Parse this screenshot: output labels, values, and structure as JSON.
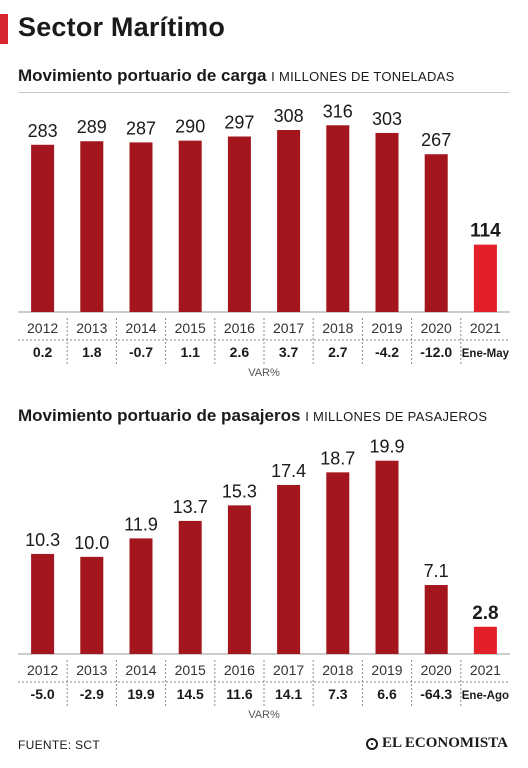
{
  "title": "Sector Marítimo",
  "colors": {
    "bar": "#a3161d",
    "highlight": "#e3202a",
    "accent": "#d8262e"
  },
  "footer": {
    "source": "FUENTE: SCT",
    "logo": "EL ECONOMISTA"
  },
  "chart_data": [
    {
      "type": "bar",
      "title": "Movimiento portuario de carga",
      "unit": "I MILLONES DE TONELADAS",
      "categories": [
        "2012",
        "2013",
        "2014",
        "2015",
        "2016",
        "2017",
        "2018",
        "2019",
        "2020",
        "2021"
      ],
      "values": [
        283,
        289,
        287,
        290,
        297,
        308,
        316,
        303,
        267,
        114
      ],
      "value_labels": [
        "283",
        "289",
        "287",
        "290",
        "297",
        "308",
        "316",
        "303",
        "267",
        "114"
      ],
      "variation": [
        "0.2",
        "1.8",
        "-0.7",
        "1.1",
        "2.6",
        "3.7",
        "2.7",
        "-4.2",
        "-12.0",
        "Ene-May"
      ],
      "variation_label": "VAR%",
      "highlight_index": 9,
      "ylim": [
        0,
        330
      ]
    },
    {
      "type": "bar",
      "title": "Movimiento portuario de pasajeros",
      "unit": "I MILLONES DE PASAJEROS",
      "categories": [
        "2012",
        "2013",
        "2014",
        "2015",
        "2016",
        "2017",
        "2018",
        "2019",
        "2020",
        "2021"
      ],
      "values": [
        10.3,
        10.0,
        11.9,
        13.7,
        15.3,
        17.4,
        18.7,
        19.9,
        7.1,
        2.8
      ],
      "value_labels": [
        "10.3",
        "10.0",
        "11.9",
        "13.7",
        "15.3",
        "17.4",
        "18.7",
        "19.9",
        "7.1",
        "2.8"
      ],
      "variation": [
        "-5.0",
        "-2.9",
        "19.9",
        "14.5",
        "11.6",
        "14.1",
        "7.3",
        "6.6",
        "-64.3",
        "Ene-Ago"
      ],
      "variation_label": "VAR%",
      "highlight_index": 9,
      "ylim": [
        0,
        21
      ]
    }
  ]
}
